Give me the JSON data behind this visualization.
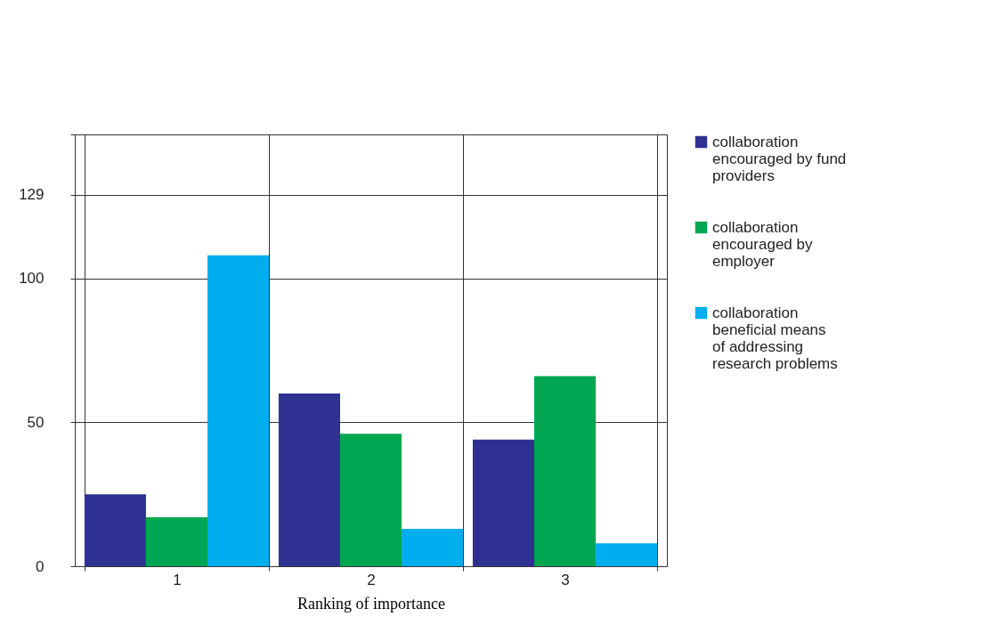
{
  "chart_data": {
    "type": "bar",
    "xlabel": "Ranking of importance",
    "categories": [
      "1",
      "2",
      "3"
    ],
    "series": [
      {
        "name": "collaboration encouraged by fund providers",
        "color": "#2e3192",
        "values": [
          25,
          60,
          44
        ]
      },
      {
        "name": "collaboration encouraged by employer",
        "color": "#00a651",
        "values": [
          17,
          46,
          66
        ]
      },
      {
        "name": "collaboration beneficial means of addressing research problems",
        "color": "#00aeef",
        "values": [
          108,
          13,
          8
        ]
      }
    ],
    "ylim": [
      0,
      150
    ],
    "yticks": [
      0,
      50,
      100,
      129,
      {
        "value": 150,
        "label": null
      }
    ],
    "grid": true,
    "legend": "right"
  }
}
